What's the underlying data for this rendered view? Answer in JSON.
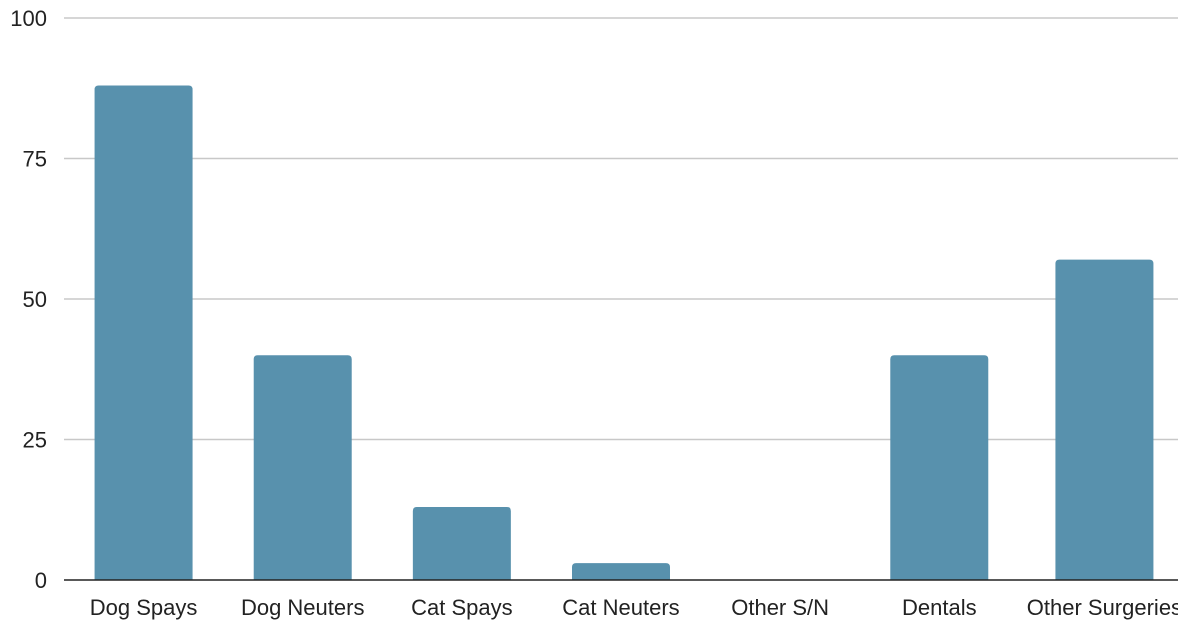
{
  "chart_data": {
    "type": "bar",
    "title": "",
    "xlabel": "",
    "ylabel": "",
    "categories": [
      "Dog Spays",
      "Dog Neuters",
      "Cat Spays",
      "Cat Neuters",
      "Other S/N",
      "Dentals",
      "Other Surgeries"
    ],
    "values": [
      88,
      40,
      13,
      3,
      0,
      40,
      57
    ],
    "ylim": [
      0,
      100
    ],
    "yticks": [
      0,
      25,
      50,
      75,
      100
    ],
    "ytick_labels": [
      "0",
      "25",
      "50",
      "75",
      "100"
    ],
    "grid": true,
    "legend": "none",
    "colors": {
      "bar": "#5891ad",
      "grid": "#c8c8c8",
      "axis": "#222222",
      "text": "#222222"
    }
  }
}
